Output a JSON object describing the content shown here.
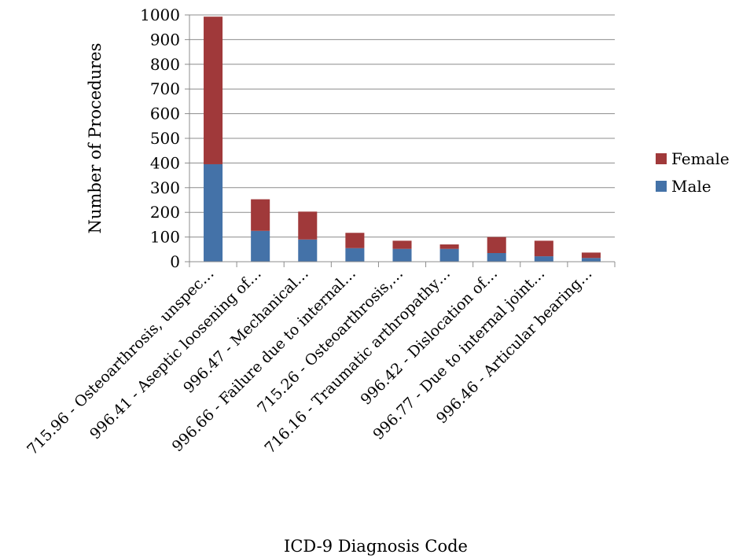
{
  "chart_data": {
    "type": "bar",
    "stacked": true,
    "xlabel": "ICD-9 Diagnosis Code",
    "ylabel": "Number of Procedures",
    "ylim": [
      0,
      1000
    ],
    "yticks": [
      0,
      100,
      200,
      300,
      400,
      500,
      600,
      700,
      800,
      900,
      1000
    ],
    "grid": true,
    "legend_position": "right",
    "categories": [
      "715.96 - Osteoarthrosis, unspec…",
      "996.41 - Aseptic loosening of…",
      "996.47 - Mechanical…",
      "996.66 - Failure due to internal…",
      "715.26 - Osteoarthrosis,…",
      "716.16 - Traumatic arthropathy…",
      "996.42 - Dislocation of…",
      "996.77 - Due to internal joint…",
      "996.46 - Articular bearing…"
    ],
    "series": [
      {
        "name": "Male",
        "color": "#4472a8",
        "values": [
          395,
          125,
          90,
          55,
          52,
          52,
          35,
          22,
          15
        ]
      },
      {
        "name": "Female",
        "color": "#a0393a",
        "values": [
          598,
          128,
          113,
          62,
          33,
          18,
          65,
          63,
          22
        ]
      }
    ]
  }
}
